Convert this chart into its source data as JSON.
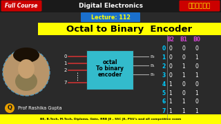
{
  "bg_color": "#2a2a2a",
  "title_text": "Octal to Binary  Encoder",
  "title_bg": "#ffff00",
  "title_color": "#000000",
  "lecture_text": "Lecture: 112",
  "lecture_bg": "#1a6fcc",
  "lecture_color": "#ffff00",
  "full_course_text": "Full Course",
  "full_course_bg": "#cc0000",
  "hindi_text": "हिन्दी",
  "hindi_bg": "#cc0000",
  "digital_text": "Digital Electronics",
  "encoder_box_color": "#33bbcc",
  "encoder_text_color": "#000000",
  "table_header": [
    "B2",
    "B1",
    "B0"
  ],
  "table_header_color": "#cc44cc",
  "table_rows": [
    [
      "0",
      "0",
      "0",
      "0"
    ],
    [
      "1",
      "0",
      "0",
      "1"
    ],
    [
      "2",
      "0",
      "1",
      "0"
    ],
    [
      "3",
      "0",
      "1",
      "1"
    ],
    [
      "4",
      "1",
      "0",
      "0"
    ],
    [
      "5",
      "1",
      "0",
      "1"
    ],
    [
      "6",
      "1",
      "1",
      "0"
    ],
    [
      "7",
      "1",
      "1",
      "1"
    ]
  ],
  "table_index_color": "#00ccff",
  "table_value_color": "#ffffff",
  "bottom_text": "BE, B.Tech, M.Tech, Diploma, Gate, RRB JE , SSC JE, PSU's and all competitive exam",
  "bottom_bg": "#ffff00",
  "bottom_color": "#000000",
  "prof_text": "Prof Rashika Gupta",
  "prof_color": "#ffffff",
  "line_color": "#cc3333",
  "output_line_color": "#aaaaaa",
  "circle_face_color": "#c8a882",
  "circle_edge_color": "#5599bb",
  "q_color": "#e8a000"
}
